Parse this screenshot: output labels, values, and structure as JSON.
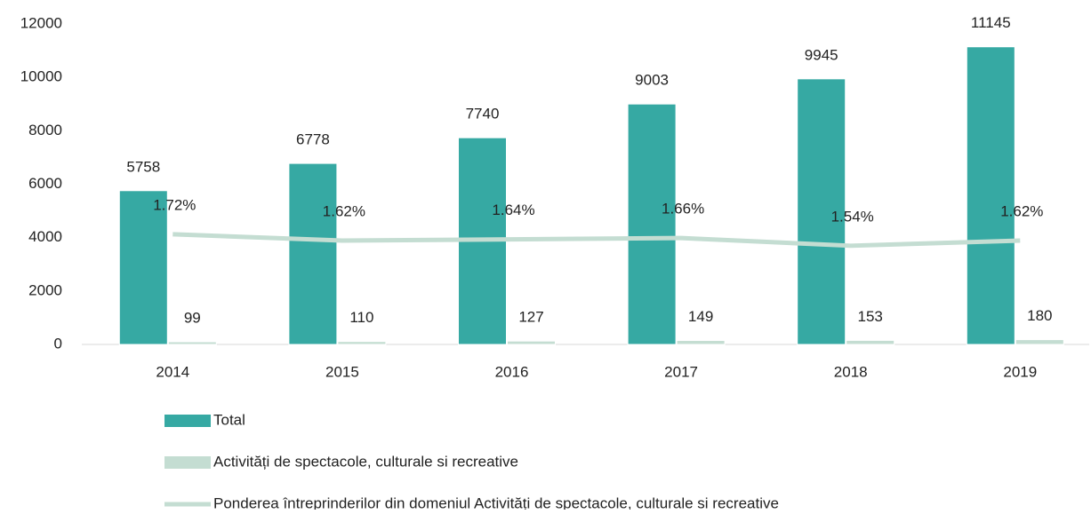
{
  "chart_data": {
    "type": "bar",
    "categories": [
      "2014",
      "2015",
      "2016",
      "2017",
      "2018",
      "2019"
    ],
    "series": [
      {
        "name": "Total",
        "color": "#36a9a3",
        "values": [
          5758,
          6778,
          7740,
          9003,
          9945,
          11145
        ]
      },
      {
        "name": "Activități de spectacole, culturale si recreative",
        "color": "#c4ddd2",
        "values": [
          99,
          110,
          127,
          149,
          153,
          180
        ]
      },
      {
        "name": "Ponderea întreprinderilor din domeniul Activități de spectacole, culturale si recreative",
        "type": "line",
        "axis": "y2",
        "color": "#c4ddd2",
        "values": [
          1.72,
          1.62,
          1.64,
          1.66,
          1.54,
          1.62
        ],
        "value_labels": [
          "1.72%",
          "1.62%",
          "1.64%",
          "1.66%",
          "1.54%",
          "1.62%"
        ]
      }
    ],
    "ylim": [
      0,
      12000
    ],
    "yticks": [
      0,
      2000,
      4000,
      6000,
      8000,
      10000,
      12000
    ],
    "y2lim": [
      0,
      5
    ],
    "grid": false,
    "legend": "bottom"
  }
}
